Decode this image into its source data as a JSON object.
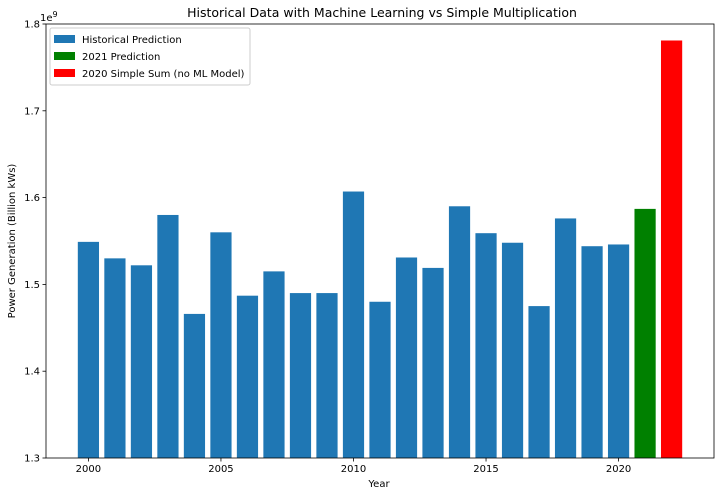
{
  "chart_data": {
    "type": "bar",
    "title": "Historical Data with Machine Learning vs Simple Multiplication",
    "xlabel": "Year",
    "ylabel": "Power Generation (Billion kWs)",
    "y_offset_label": "1e9",
    "xlim": [
      1998.4,
      2023.6
    ],
    "ylim": [
      1.3,
      1.8
    ],
    "x_ticks": [
      2000,
      2005,
      2010,
      2015,
      2020
    ],
    "y_ticks": [
      1.3,
      1.4,
      1.5,
      1.6,
      1.7,
      1.8
    ],
    "grid": false,
    "legend_position": "top-left",
    "series": [
      {
        "name": "Historical Prediction",
        "color": "#1f77b4",
        "x": [
          2000,
          2001,
          2002,
          2003,
          2004,
          2005,
          2006,
          2007,
          2008,
          2009,
          2010,
          2011,
          2012,
          2013,
          2014,
          2015,
          2016,
          2017,
          2018,
          2019,
          2020
        ],
        "values": [
          1.549,
          1.53,
          1.522,
          1.58,
          1.466,
          1.56,
          1.487,
          1.515,
          1.49,
          1.49,
          1.607,
          1.48,
          1.531,
          1.519,
          1.59,
          1.559,
          1.548,
          1.475,
          1.576,
          1.544,
          1.546
        ]
      },
      {
        "name": "2021 Prediction",
        "color": "#008000",
        "x": [
          2021
        ],
        "values": [
          1.587
        ]
      },
      {
        "name": "2020 Simple Sum (no ML Model)",
        "color": "#ff0000",
        "x": [
          2022
        ],
        "values": [
          1.781
        ]
      }
    ]
  }
}
